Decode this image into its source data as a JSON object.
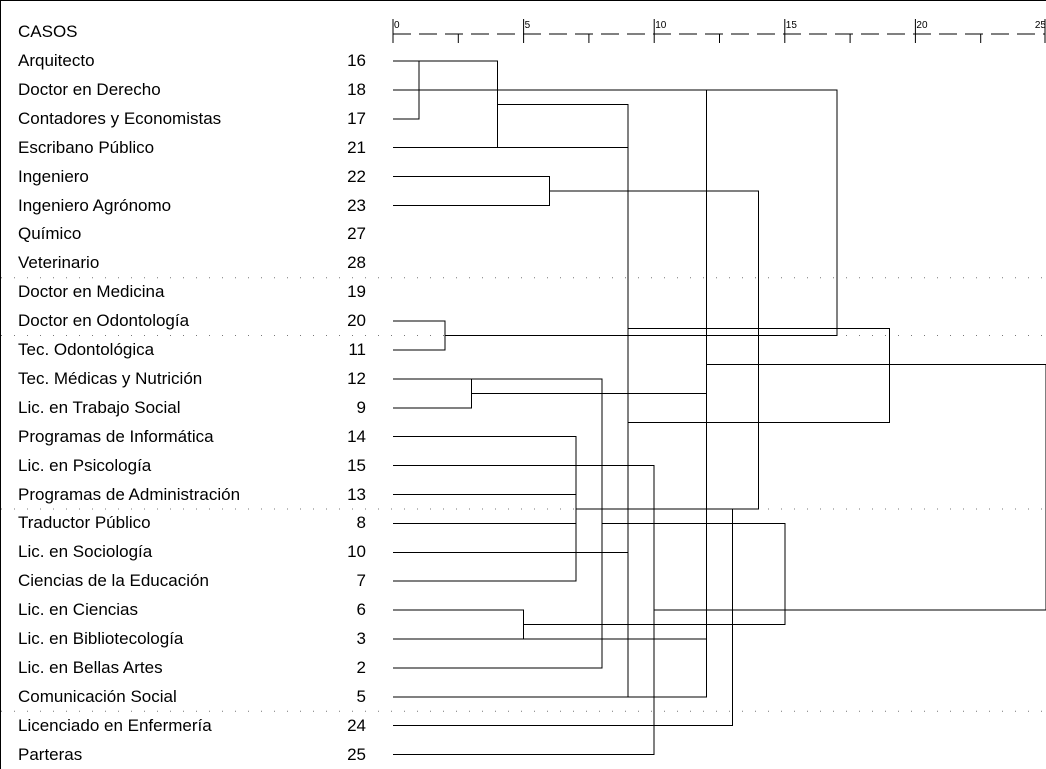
{
  "header": {
    "casos_label": "CASOS"
  },
  "axis": {
    "min": 0,
    "max": 25,
    "major_ticks": [
      0,
      5,
      10,
      15,
      20,
      25
    ],
    "minor_ticks": [
      2.5,
      7.5,
      12.5,
      17.5,
      22.5
    ],
    "tick_labels": [
      "0",
      "5",
      "10",
      "15",
      "20",
      "25"
    ]
  },
  "cases": [
    {
      "name": "Arquitecto",
      "id": "16"
    },
    {
      "name": "Doctor en Derecho",
      "id": "18"
    },
    {
      "name": "Contadores y Economistas",
      "id": "17"
    },
    {
      "name": "Escribano Público",
      "id": "21"
    },
    {
      "name": "Ingeniero",
      "id": "22"
    },
    {
      "name": "Ingeniero Agrónomo",
      "id": "23"
    },
    {
      "name": "Químico",
      "id": "27"
    },
    {
      "name": "Veterinario",
      "id": "28"
    },
    {
      "name": "Doctor en Medicina",
      "id": "19"
    },
    {
      "name": "Doctor en Odontología",
      "id": "20"
    },
    {
      "name": "Tec. Odontológica",
      "id": "11"
    },
    {
      "name": "Tec. Médicas y Nutrición",
      "id": "12"
    },
    {
      "name": "Lic. en Trabajo Social",
      "id": "9"
    },
    {
      "name": "Programas de Informática",
      "id": "14"
    },
    {
      "name": "Lic. en Psicología",
      "id": "15"
    },
    {
      "name": "Programas de Administración",
      "id": "13"
    },
    {
      "name": "Traductor Público",
      "id": "8"
    },
    {
      "name": "Lic. en Sociología",
      "id": "10"
    },
    {
      "name": "Ciencias de la Educación",
      "id": "7"
    },
    {
      "name": "Lic. en Ciencias",
      "id": "6"
    },
    {
      "name": "Lic. en Bibliotecología",
      "id": "3"
    },
    {
      "name": "Lic. en Bellas Artes",
      "id": "2"
    },
    {
      "name": "Comunicación Social",
      "id": "5"
    },
    {
      "name": "Licenciado en Enfermería",
      "id": "24"
    },
    {
      "name": "Parteras",
      "id": "25"
    }
  ],
  "dotted_separators_after_case": [
    7,
    9,
    15,
    22
  ],
  "merges": [
    {
      "a": 0,
      "b": 2,
      "height": 1.0
    },
    {
      "a": 3,
      "b": 0,
      "height": 4.0
    },
    {
      "a": 9,
      "b": 10,
      "height": 2.0
    },
    {
      "a": 12,
      "b": 11,
      "height": 3.0
    },
    {
      "a": 19,
      "b": 20,
      "height": 5.0
    },
    {
      "a": 4,
      "b": 5,
      "height": 6.0
    },
    {
      "a": 16,
      "b": 15,
      "height": 7.0
    },
    {
      "a": 18,
      "b": 13,
      "height": 7.0
    },
    {
      "a": 21,
      "b": 11,
      "height": 8.0
    },
    {
      "a": 22,
      "b": 3,
      "height": 9.0
    },
    {
      "a": 26,
      "b": 17,
      "height": 9.0
    },
    {
      "a": 24,
      "b": 14,
      "height": 10.0
    },
    {
      "a": 25,
      "b": 20,
      "height": 12.0
    },
    {
      "a": 28,
      "b": 22,
      "height": 12.0
    },
    {
      "a": 31,
      "b": 23,
      "height": 13.0
    },
    {
      "a": 32,
      "b": 30,
      "height": 14.0
    },
    {
      "a": 29,
      "b": 33,
      "height": 15.0
    },
    {
      "a": 27,
      "b": 1,
      "height": 17.0
    },
    {
      "a": 34,
      "b": 35,
      "height": 19.0
    },
    {
      "a": 36,
      "b": 37,
      "height": 25.0
    }
  ]
}
